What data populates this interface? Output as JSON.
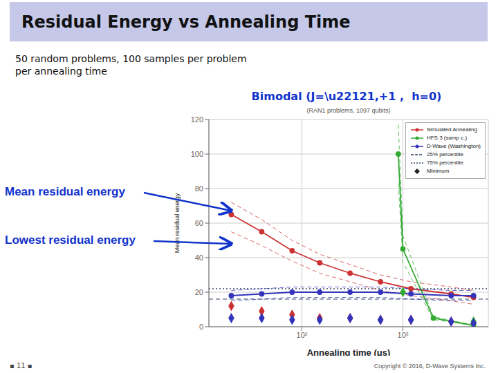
{
  "chart_data": {
    "type": "line",
    "title": "Residual Energy vs Annealing Time",
    "subtitle": "50 random problems, 100 samples per problem\nper annealing time",
    "xlabel": "Annealing time (μs)",
    "ylabel": "Mean residual energy",
    "log": "x",
    "grid": true,
    "legend": "upper right",
    "xlim": [
      12,
      7000
    ],
    "xticks": [
      {
        "value": 100,
        "label": "10²"
      },
      {
        "value": 1000,
        "label": "10³"
      }
    ],
    "ylim": [
      0,
      120
    ],
    "yticks": [
      0,
      20,
      40,
      60,
      80,
      100,
      120
    ],
    "annotations": [
      {
        "text": "(RAN1 problems, 1097 qubits)"
      },
      {
        "text": "Bimodal (J=\\u22121,+1 ,  h=0)",
        "color": "#1133cc"
      },
      {
        "text": "Mean residual energy",
        "color": "#1133cc"
      },
      {
        "text": "Lowest residual energy",
        "color": "#1133cc"
      },
      {
        "text": "▪ 11 ▪"
      },
      {
        "text": "Copyright © 2016, D-Wave Systems Inc."
      }
    ],
    "series": [
      {
        "name": "Simulated Annealing",
        "type": "line",
        "color": "#cc3333",
        "marker": "circle",
        "line_style": "solid",
        "x": [
          20,
          40,
          80,
          150,
          300,
          600,
          1200,
          3000,
          5000
        ],
        "values": [
          65,
          55,
          44,
          37,
          31,
          26,
          22,
          19,
          17
        ]
      },
      {
        "type": "line",
        "color": "#cc3333",
        "line_style": "dashed",
        "x": [
          20,
          40,
          80,
          150,
          300,
          600,
          1200,
          3000,
          5000
        ],
        "values": [
          55,
          47,
          38,
          31,
          26,
          21,
          18,
          15,
          13
        ]
      },
      {
        "type": "line",
        "color": "#cc3333",
        "line_style": "dashed",
        "x": [
          20,
          40,
          80,
          150,
          300,
          600,
          1200,
          3000,
          5000
        ],
        "values": [
          72,
          62,
          50,
          42,
          36,
          30,
          26,
          23,
          21
        ]
      },
      {
        "name": "HFS 3 (samp c.)",
        "type": "line",
        "color": "#33aa33",
        "marker": "circle",
        "line_style": "solid",
        "x": [
          900,
          1000,
          2000,
          5000
        ],
        "values": [
          100,
          45,
          5,
          0.8
        ]
      },
      {
        "type": "line",
        "color": "#33aa33",
        "line_style": "dashed",
        "x": [
          900,
          1000,
          2000,
          5000
        ],
        "values": [
          83,
          37.35,
          4.15,
          0.664
        ]
      },
      {
        "type": "line",
        "color": "#33aa33",
        "line_style": "dashed",
        "x": [
          900,
          1000,
          2000,
          5000
        ],
        "values": [
          117,
          52.65,
          5.85,
          0.936
        ]
      },
      {
        "name": "D-Wave (Washington)",
        "type": "line",
        "color": "#3333bb",
        "marker": "circle",
        "line_style": "solid",
        "x": [
          20,
          40,
          80,
          150,
          300,
          600,
          1200,
          3000,
          5000
        ],
        "values": [
          18,
          19,
          20,
          20,
          20,
          20,
          19,
          18,
          18
        ]
      },
      {
        "type": "line",
        "color": "#3333bb",
        "line_style": "dashed",
        "x": [
          20,
          40,
          80,
          150,
          300,
          600,
          1200,
          3000,
          5000
        ],
        "values": [
          15,
          16,
          17,
          17,
          17,
          17,
          16,
          15,
          15
        ]
      },
      {
        "type": "line",
        "color": "#3333bb",
        "line_style": "dashed",
        "x": [
          20,
          40,
          80,
          150,
          300,
          600,
          1200,
          3000,
          5000
        ],
        "values": [
          21,
          22,
          23,
          23,
          23,
          23,
          22,
          21,
          21
        ]
      },
      {
        "name": "25% percentile",
        "type": "hline",
        "color": "#334466",
        "line_style": "dashed",
        "value": 16
      },
      {
        "name": "75% percentile",
        "type": "hline",
        "color": "#334466",
        "line_style": "dotted",
        "value": 22
      },
      {
        "name": "Minimum",
        "type": "scatter",
        "color": "#cc3333",
        "marker": "diamond",
        "x": [
          20,
          40,
          80,
          150,
          300,
          600,
          1200,
          3000,
          5000
        ],
        "values": [
          12,
          9,
          7,
          5,
          5,
          4,
          4,
          3,
          2
        ]
      },
      {
        "name": "Minimum",
        "type": "scatter",
        "color": "#33aa33",
        "marker": "diamond",
        "x": [
          1000,
          5000
        ],
        "values": [
          20,
          3
        ]
      },
      {
        "name": "Minimum",
        "type": "scatter",
        "color": "#3333bb",
        "marker": "diamond",
        "x": [
          20,
          40,
          80,
          150,
          300,
          600,
          1200,
          3000,
          5000
        ],
        "values": [
          5,
          5,
          4,
          4,
          5,
          4,
          4,
          3,
          2
        ]
      }
    ]
  }
}
